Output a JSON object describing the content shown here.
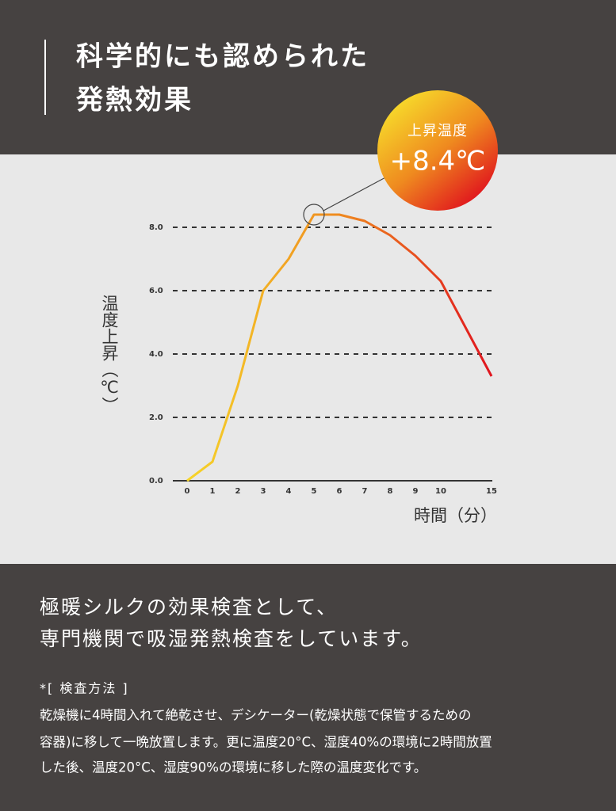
{
  "header": {
    "title_lines": [
      "科学的にも認められた",
      "発熱効果"
    ]
  },
  "badge": {
    "label": "上昇温度",
    "value": "+8.4℃"
  },
  "chart_data": {
    "type": "line",
    "y_label": "温度上昇（℃）",
    "x_label": "時間（分）",
    "categories": [
      "0",
      "1",
      "2",
      "3",
      "4",
      "5",
      "6",
      "7",
      "8",
      "9",
      "10",
      "15"
    ],
    "series": [
      {
        "values": [
          0,
          0.6,
          3.0,
          6.0,
          7.0,
          8.4,
          8.4,
          8.2,
          7.75,
          7.1,
          6.3,
          3.3
        ],
        "colors": [
          "#f6d52a",
          "#ef8a1f",
          "#e0141e"
        ]
      }
    ],
    "ylim": [
      0,
      8.4
    ],
    "yticks": [
      {
        "value": 0,
        "label": "0.0"
      },
      {
        "value": 2,
        "label": "2.0"
      },
      {
        "value": 4,
        "label": "4.0"
      },
      {
        "value": 6,
        "label": "6.0"
      },
      {
        "value": 8,
        "label": "8.0"
      }
    ],
    "grid": true
  },
  "description": {
    "lines": [
      "極暖シルクの効果検査として、",
      "専門機関で吸湿発熱検査をしています。"
    ]
  },
  "note": {
    "heading": "*[ 検査方法 ]",
    "lines": [
      "乾燥機に4時間入れて絶乾させ、デシケーター(乾燥状態で保管するための",
      "容器)に移して一晩放置します。更に温度20°C、湿度40%の環境に2時間放置",
      "した後、温度20°C、湿度90%の環境に移した際の温度変化です。"
    ]
  }
}
